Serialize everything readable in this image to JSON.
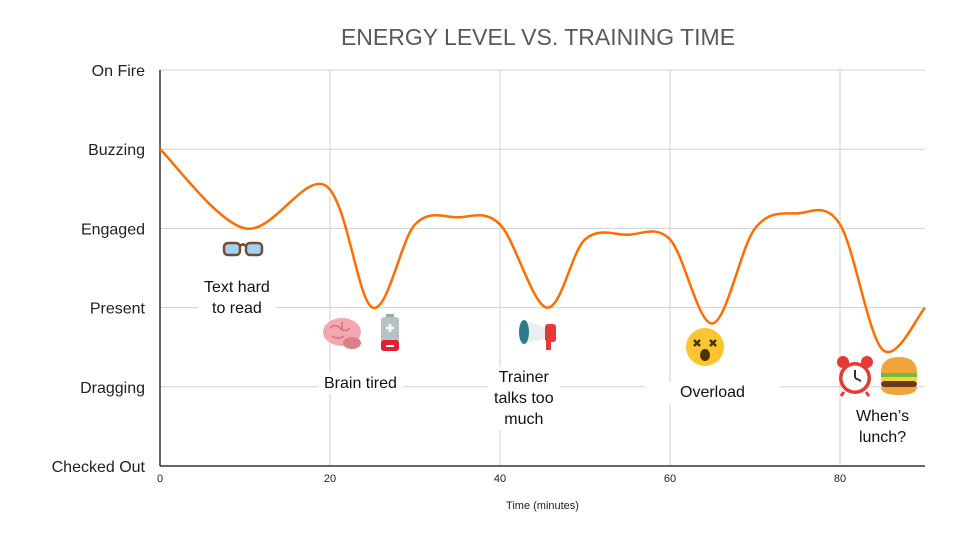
{
  "chart_data": {
    "type": "line",
    "title": "ENERGY LEVEL VS. TRAINING TIME",
    "xlabel": "Time (minutes)",
    "ylabel": "",
    "xlim": [
      0,
      90
    ],
    "ylim": [
      0,
      5
    ],
    "x_ticks": [
      0,
      20,
      40,
      60,
      80
    ],
    "y_tick_labels": [
      "Checked Out",
      "Dragging",
      "Present",
      "Engaged",
      "Buzzing",
      "On Fire"
    ],
    "grid": true,
    "line_color": "#ff6d01",
    "series": [
      {
        "x": [
          0,
          10,
          19.5,
          25,
          30,
          35,
          40,
          45.5,
          50,
          55,
          60,
          65,
          70,
          75,
          80,
          85,
          90
        ],
        "y": [
          4,
          3.0,
          3.54,
          2.0,
          3.05,
          3.14,
          3.05,
          2.0,
          2.86,
          2.92,
          2.86,
          1.8,
          3.0,
          3.19,
          3.05,
          1.47,
          2.0
        ]
      }
    ],
    "annotations": [
      {
        "text": "Text hard\nto read",
        "icons": [
          "glasses-icon"
        ]
      },
      {
        "text": "Brain tired",
        "icons": [
          "brain-icon",
          "low-battery-icon"
        ]
      },
      {
        "text": "Trainer\ntalks too\nmuch",
        "icons": [
          "megaphone-icon"
        ]
      },
      {
        "text": "Overload",
        "icons": [
          "dizzy-face-icon"
        ]
      },
      {
        "text": "When’s\nlunch?",
        "icons": [
          "alarm-clock-icon",
          "hamburger-icon"
        ]
      }
    ]
  }
}
